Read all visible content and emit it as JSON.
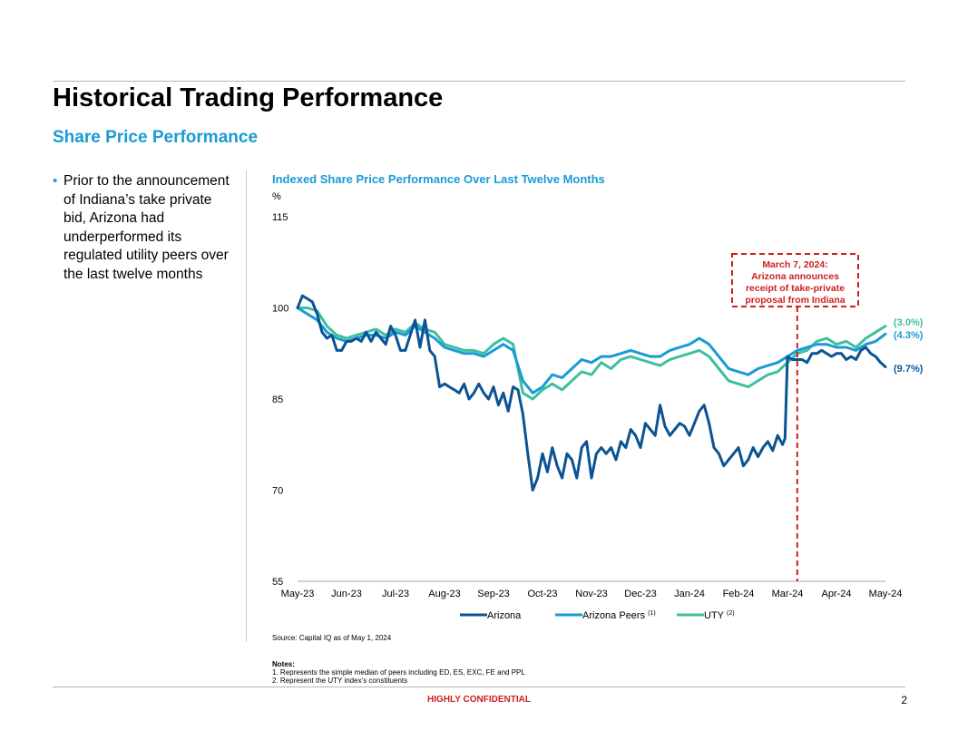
{
  "page": {
    "title": "Historical Trading Performance",
    "subtitle": "Share Price Performance",
    "bullet": "Prior to the announcement of Indiana’s take private bid, Arizona had underperformed its regulated utility peers over the last twelve months",
    "source": "Source: Capital IQ as of May 1, 2024",
    "notes_heading": "Notes:",
    "notes": [
      "1.  Represents the simple median of peers including ED, ES, EXC, FE and PPL",
      "2.  Represent the UTY index’s constituents"
    ],
    "confidential": "HIGHLY CONFIDENTIAL",
    "page_number": "2"
  },
  "chart_data": {
    "type": "line",
    "title": "Indexed Share Price Performance Over Last Twelve Months",
    "ylabel": "%",
    "ylim": [
      55,
      115
    ],
    "yticks": [
      115,
      100,
      85,
      70,
      55
    ],
    "x_tick_labels": [
      "May-23",
      "Jun-23",
      "Jul-23",
      "Aug-23",
      "Sep-23",
      "Oct-23",
      "Nov-23",
      "Dec-23",
      "Jan-24",
      "Feb-24",
      "Mar-24",
      "Apr-24",
      "May-24"
    ],
    "xlim": [
      0,
      12
    ],
    "series": [
      {
        "name": "Arizona",
        "footnote": "",
        "color": "#0b5394",
        "end_label": "(9.7%)",
        "x": [
          0,
          0.1,
          0.2,
          0.3,
          0.4,
          0.5,
          0.6,
          0.7,
          0.8,
          0.9,
          1.0,
          1.1,
          1.2,
          1.3,
          1.4,
          1.5,
          1.6,
          1.7,
          1.8,
          1.9,
          2.0,
          2.1,
          2.2,
          2.3,
          2.4,
          2.5,
          2.6,
          2.7,
          2.8,
          2.9,
          3.0,
          3.1,
          3.2,
          3.3,
          3.4,
          3.5,
          3.6,
          3.7,
          3.8,
          3.9,
          4.0,
          4.1,
          4.2,
          4.3,
          4.4,
          4.5,
          4.6,
          4.7,
          4.8,
          4.9,
          5.0,
          5.1,
          5.2,
          5.3,
          5.4,
          5.5,
          5.6,
          5.7,
          5.8,
          5.9,
          6.0,
          6.1,
          6.2,
          6.3,
          6.4,
          6.5,
          6.6,
          6.7,
          6.8,
          6.9,
          7.0,
          7.1,
          7.2,
          7.3,
          7.4,
          7.5,
          7.6,
          7.7,
          7.8,
          7.9,
          8.0,
          8.1,
          8.2,
          8.3,
          8.4,
          8.5,
          8.6,
          8.7,
          8.8,
          8.9,
          9.0,
          9.1,
          9.2,
          9.3,
          9.4,
          9.5,
          9.6,
          9.7,
          9.8,
          9.9,
          9.95,
          10.0,
          10.1,
          10.2,
          10.3,
          10.4,
          10.5,
          10.6,
          10.7,
          10.8,
          10.9,
          11.0,
          11.1,
          11.2,
          11.3,
          11.4,
          11.5,
          11.6,
          11.7,
          11.8,
          11.9,
          12.0
        ],
        "values": [
          100,
          102,
          101.5,
          101,
          99,
          96,
          95,
          95.5,
          93,
          93,
          94.5,
          94.5,
          95,
          94.5,
          96,
          94.5,
          96,
          95,
          94,
          97,
          95.5,
          93,
          93,
          95.5,
          98,
          93.5,
          98,
          93,
          92,
          87,
          87.5,
          87,
          86.5,
          86,
          87.5,
          85,
          86,
          87.5,
          86,
          85,
          87,
          84,
          86,
          83,
          87,
          86.5,
          82.5,
          76,
          70,
          72,
          76,
          73,
          77,
          74,
          72,
          76,
          75,
          72,
          77,
          78,
          72,
          76,
          77,
          76,
          77,
          75,
          78,
          77,
          80,
          79,
          77,
          81,
          80,
          79,
          84,
          80.5,
          79,
          80,
          81,
          80.5,
          79,
          81,
          83,
          84,
          81,
          77,
          76,
          74,
          75,
          76,
          77,
          74,
          75,
          77,
          75.5,
          77,
          78,
          76.5,
          79,
          77.5,
          78.5,
          92,
          91.5,
          91.5,
          91.5,
          91,
          92.5,
          92.5,
          93,
          92.5,
          92,
          92.5,
          92.5,
          91.5,
          92,
          91.5,
          93,
          93.5,
          92.5,
          92,
          91,
          90.3
        ]
      },
      {
        "name": "Arizona Peers",
        "footnote": "(1)",
        "color": "#1a9ad6",
        "end_label": "(4.3%)",
        "x": [
          0,
          0.2,
          0.4,
          0.6,
          0.8,
          1.0,
          1.2,
          1.4,
          1.6,
          1.8,
          2.0,
          2.2,
          2.4,
          2.6,
          2.8,
          3.0,
          3.2,
          3.4,
          3.6,
          3.8,
          4.0,
          4.2,
          4.4,
          4.6,
          4.8,
          5.0,
          5.2,
          5.4,
          5.6,
          5.8,
          6.0,
          6.2,
          6.4,
          6.6,
          6.8,
          7.0,
          7.2,
          7.4,
          7.6,
          7.8,
          8.0,
          8.2,
          8.4,
          8.6,
          8.8,
          9.0,
          9.2,
          9.4,
          9.6,
          9.8,
          10.0,
          10.2,
          10.4,
          10.6,
          10.8,
          11.0,
          11.2,
          11.4,
          11.6,
          11.8,
          12.0
        ],
        "values": [
          100,
          99,
          98,
          96,
          95,
          94.5,
          95,
          95.5,
          95.5,
          95,
          96,
          95.5,
          97,
          96,
          95,
          93.5,
          93,
          92.5,
          92.5,
          92,
          93,
          94,
          93,
          88,
          86,
          87,
          89,
          88.5,
          90,
          91.5,
          91,
          92,
          92,
          92.5,
          93,
          92.5,
          92,
          92,
          93,
          93.5,
          94,
          95,
          94,
          92,
          90,
          89.5,
          89,
          90,
          90.5,
          91,
          92,
          93,
          93.5,
          94,
          94,
          93.5,
          93.5,
          93,
          94,
          94.5,
          95.7
        ]
      },
      {
        "name": "UTY",
        "footnote": "(2)",
        "color": "#3dbfa0",
        "end_label": "(3.0%)",
        "x": [
          0,
          0.2,
          0.4,
          0.6,
          0.8,
          1.0,
          1.2,
          1.4,
          1.6,
          1.8,
          2.0,
          2.2,
          2.4,
          2.6,
          2.8,
          3.0,
          3.2,
          3.4,
          3.6,
          3.8,
          4.0,
          4.2,
          4.4,
          4.6,
          4.8,
          5.0,
          5.2,
          5.4,
          5.6,
          5.8,
          6.0,
          6.2,
          6.4,
          6.6,
          6.8,
          7.0,
          7.2,
          7.4,
          7.6,
          7.8,
          8.0,
          8.2,
          8.4,
          8.6,
          8.8,
          9.0,
          9.2,
          9.4,
          9.6,
          9.8,
          10.0,
          10.2,
          10.4,
          10.6,
          10.8,
          11.0,
          11.2,
          11.4,
          11.6,
          11.8,
          12.0
        ],
        "values": [
          100,
          100,
          99.5,
          97,
          95.5,
          95,
          95.5,
          96,
          96.5,
          95.5,
          96.5,
          96,
          97.5,
          96.5,
          96,
          94,
          93.5,
          93,
          93,
          92.5,
          94,
          95,
          94,
          86,
          85,
          86.5,
          87.5,
          86.5,
          88,
          89.5,
          89,
          91,
          90,
          91.5,
          92,
          91.5,
          91,
          90.5,
          91.5,
          92,
          92.5,
          93,
          92,
          90,
          88,
          87.5,
          87,
          88,
          89,
          89.5,
          91,
          92.5,
          93,
          94.5,
          95,
          94,
          94.5,
          93.5,
          95,
          96,
          97
        ]
      }
    ],
    "annotation": {
      "text_lines": [
        "March 7, 2024:",
        "Arizona announces",
        "receipt of take-private",
        "proposal from Indiana"
      ],
      "x": 10.2,
      "color": "#cc1f1f"
    }
  }
}
